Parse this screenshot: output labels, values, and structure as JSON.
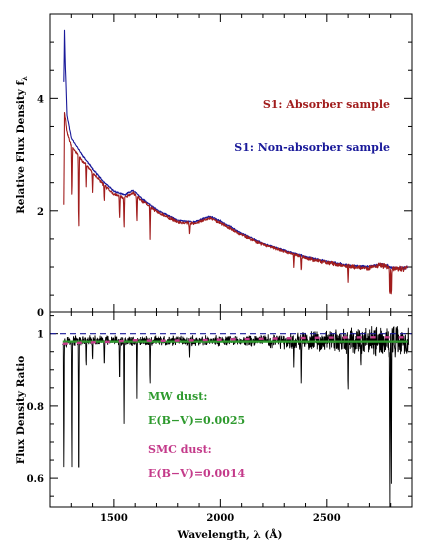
{
  "chart_data": [
    {
      "type": "line",
      "ylabel": "Relative Flux Density f",
      "ylabel_subscript": "λ",
      "xlim": [
        1200,
        2900
      ],
      "ylim": [
        0.2,
        5.5
      ],
      "yticks_labeled": [
        2,
        4
      ],
      "xticks_labeled": [],
      "grid": false,
      "legend": [
        {
          "label": "S1: Absorber sample",
          "color": "#a11d1d"
        },
        {
          "label": "S1: Non-absorber sample",
          "color": "#1a1a9a"
        }
      ],
      "series": [
        {
          "name": "S1: Non-absorber sample",
          "color": "#1a1a9a",
          "x": [
            1265,
            1268,
            1272,
            1280,
            1300,
            1350,
            1400,
            1450,
            1500,
            1550,
            1590,
            1630,
            1700,
            1800,
            1880,
            1910,
            1950,
            2000,
            2100,
            2200,
            2300,
            2400,
            2500,
            2600,
            2700,
            2750,
            2790,
            2800,
            2850,
            2880
          ],
          "y": [
            4.3,
            5.2,
            4.6,
            3.7,
            3.3,
            3.0,
            2.75,
            2.52,
            2.35,
            2.28,
            2.37,
            2.22,
            2.02,
            1.83,
            1.8,
            1.85,
            1.9,
            1.82,
            1.6,
            1.42,
            1.3,
            1.18,
            1.1,
            1.03,
            1.0,
            1.05,
            1.02,
            0.98,
            0.98,
            1.0
          ]
        },
        {
          "name": "S1: Absorber sample",
          "color": "#a11d1d",
          "x": [
            1265,
            1268,
            1272,
            1280,
            1300,
            1350,
            1400,
            1450,
            1500,
            1550,
            1590,
            1630,
            1700,
            1800,
            1880,
            1910,
            1950,
            2000,
            2100,
            2200,
            2300,
            2400,
            2500,
            2600,
            2700,
            2750,
            2790,
            2800,
            2850,
            2880
          ],
          "y": [
            3.4,
            3.75,
            3.65,
            3.4,
            3.15,
            2.9,
            2.68,
            2.47,
            2.3,
            2.23,
            2.32,
            2.18,
            1.99,
            1.8,
            1.77,
            1.82,
            1.87,
            1.79,
            1.57,
            1.4,
            1.28,
            1.16,
            1.08,
            1.01,
            0.98,
            1.03,
            1.0,
            0.96,
            0.97,
            0.99
          ],
          "absorption_lines": [
            {
              "x": 1265,
              "depth": 1.3
            },
            {
              "x": 1303,
              "depth": 1.0
            },
            {
              "x": 1335,
              "depth": 1.5
            },
            {
              "x": 1370,
              "depth": 0.4
            },
            {
              "x": 1400,
              "depth": 0.35
            },
            {
              "x": 1455,
              "depth": 0.3
            },
            {
              "x": 1527,
              "depth": 0.45
            },
            {
              "x": 1548,
              "depth": 0.6
            },
            {
              "x": 1608,
              "depth": 0.5
            },
            {
              "x": 1670,
              "depth": 0.55
            },
            {
              "x": 1855,
              "depth": 0.25
            },
            {
              "x": 2345,
              "depth": 0.25
            },
            {
              "x": 2380,
              "depth": 0.3
            },
            {
              "x": 2600,
              "depth": 0.3
            },
            {
              "x": 2796,
              "depth": 0.55
            },
            {
              "x": 2803,
              "depth": 0.55
            }
          ]
        }
      ]
    },
    {
      "type": "line",
      "xlabel": "Wavelength, λ (Å)",
      "ylabel": "Flux Density Ratio",
      "xlim": [
        1200,
        2900
      ],
      "ylim": [
        0.52,
        1.06
      ],
      "xticks_labeled": [
        1500,
        2000,
        2500
      ],
      "yticks_labeled": [
        0.6,
        0.8,
        1
      ],
      "ytick_labels": [
        "0.6",
        "0.8",
        "1"
      ],
      "grid": false,
      "reference_lines": [
        {
          "y": 1.0,
          "color": "#1a1a9a",
          "style": "dashed"
        }
      ],
      "annotations": [
        {
          "text": "MW dust:",
          "color": "#2e9a2e"
        },
        {
          "text": "E(B−V)=0.0025",
          "color": "#2e9a2e"
        },
        {
          "text": "SMC dust:",
          "color": "#c43a8a"
        },
        {
          "text": "E(B−V)=0.0014",
          "color": "#c43a8a"
        }
      ],
      "series": [
        {
          "color": "#000000",
          "baseline": 0.98,
          "absorption_lines": [
            {
              "x": 1265,
              "y": 0.6
            },
            {
              "x": 1303,
              "y": 0.6
            },
            {
              "x": 1335,
              "y": 0.52
            },
            {
              "x": 1370,
              "y": 0.9
            },
            {
              "x": 1400,
              "y": 0.92
            },
            {
              "x": 1455,
              "y": 0.9
            },
            {
              "x": 1527,
              "y": 0.85
            },
            {
              "x": 1548,
              "y": 0.75
            },
            {
              "x": 1608,
              "y": 0.82
            },
            {
              "x": 1670,
              "y": 0.84
            },
            {
              "x": 1855,
              "y": 0.93
            },
            {
              "x": 2345,
              "y": 0.9
            },
            {
              "x": 2380,
              "y": 0.84
            },
            {
              "x": 2600,
              "y": 0.82
            },
            {
              "x": 2660,
              "y": 0.9
            },
            {
              "x": 2796,
              "y": 0.52
            },
            {
              "x": 2803,
              "y": 0.55
            }
          ]
        },
        {
          "color": "#2e9a2e",
          "x": [
            1260,
            2880
          ],
          "y": [
            0.978,
            0.978
          ]
        },
        {
          "color": "#c43a8a",
          "style": "dashed",
          "x": [
            1260,
            1350,
            1500,
            1600,
            1700,
            1900,
            2100,
            2300,
            2500,
            2700,
            2880
          ],
          "y": [
            0.972,
            0.975,
            0.978,
            0.982,
            0.98,
            0.982,
            0.985,
            0.987,
            0.989,
            0.99,
            0.99
          ]
        }
      ]
    }
  ]
}
